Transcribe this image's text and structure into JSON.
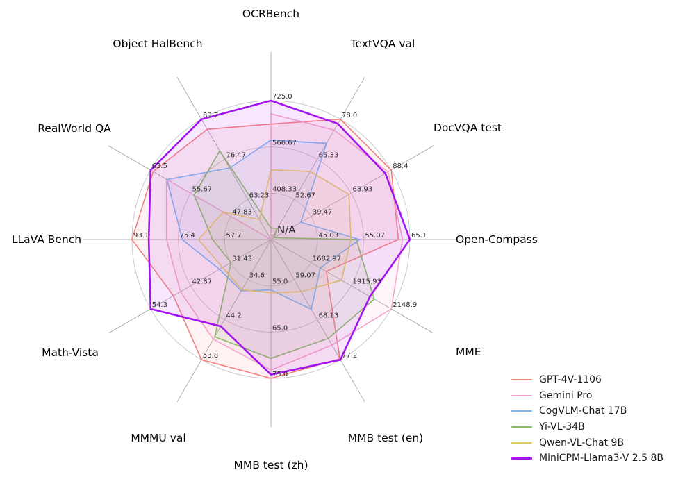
{
  "chart_data": {
    "type": "radar",
    "title": "",
    "center_label": "N/A",
    "grid": true,
    "legend_position": "lower right",
    "grid_color": "#c3c3c3",
    "spoke_color": "#9e9e9e",
    "axes": [
      {
        "label": "OCRBench",
        "max": 725.0,
        "min": 250.0,
        "tick_labels": [
          "725.0",
          "566.67",
          "408.33"
        ]
      },
      {
        "label": "TextVQA val",
        "max": 78.0,
        "min": 40.0,
        "tick_labels": [
          "78.0",
          "65.33",
          "52.67"
        ]
      },
      {
        "label": "DocVQA test",
        "max": 88.4,
        "min": 15.0,
        "tick_labels": [
          "88.4",
          "63.93",
          "39.47"
        ]
      },
      {
        "label": "Open-Compass",
        "max": 65.1,
        "min": 35.0,
        "tick_labels": [
          "65.1",
          "55.07",
          "45.03"
        ]
      },
      {
        "label": "MME",
        "max": 2148.9,
        "min": 1450.0,
        "tick_labels": [
          "2148.9",
          "1915.93",
          "1682.97"
        ]
      },
      {
        "label": "MMB test (en)",
        "max": 77.2,
        "min": 50.0,
        "tick_labels": [
          "77.2",
          "68.13",
          "59.07"
        ]
      },
      {
        "label": "MMB test (zh)",
        "max": 75.0,
        "min": 45.0,
        "tick_labels": [
          "75.0",
          "65.0",
          "55.0"
        ]
      },
      {
        "label": "MMMU val",
        "max": 53.8,
        "min": 25.0,
        "tick_labels": [
          "53.8",
          "44.2",
          "34.6"
        ]
      },
      {
        "label": "Math-Vista",
        "max": 54.3,
        "min": 20.0,
        "tick_labels": [
          "54.3",
          "42.87",
          "31.43"
        ]
      },
      {
        "label": "LLaVA Bench",
        "max": 93.1,
        "min": 40.0,
        "tick_labels": [
          "93.1",
          "75.4",
          "57.7"
        ]
      },
      {
        "label": "RealWorld QA",
        "max": 63.5,
        "min": 40.0,
        "tick_labels": [
          "63.5",
          "55.67",
          "47.83"
        ]
      },
      {
        "label": "Object HalBench",
        "max": 89.7,
        "min": 50.0,
        "tick_labels": [
          "89.7",
          "76.47",
          "63.23"
        ]
      }
    ],
    "series": [
      {
        "name": "GPT-4V-1106",
        "color": "#f5827f",
        "line_width": 1.6,
        "values": [
          645,
          78.0,
          88.4,
          62.6,
          1771.5,
          77.0,
          75.0,
          53.8,
          47.8,
          93.1,
          63.0,
          86.4
        ]
      },
      {
        "name": "Gemini Pro",
        "color": "#f6a4cb",
        "line_width": 1.6,
        "values": [
          680,
          74.6,
          86.5,
          63.5,
          2148.9,
          73.9,
          73.2,
          48.9,
          45.8,
          79.9,
          60.4,
          null
        ]
      },
      {
        "name": "CogVLM-Chat 17B",
        "color": "#7fb5f0",
        "line_width": 1.6,
        "values": [
          590,
          70.4,
          33.3,
          54.2,
          1736.6,
          65.8,
          55.9,
          37.3,
          34.7,
          73.9,
          60.3,
          73.6
        ]
      },
      {
        "name": "Yi-VL-34B",
        "color": "#8bbb66",
        "line_width": 1.6,
        "values": [
          290,
          43.4,
          16.9,
          53.5,
          2050.2,
          72.4,
          70.7,
          48.3,
          31.4,
          62.3,
          55.0,
          79.3
        ]
      },
      {
        "name": "Qwen-VL-Chat 9B",
        "color": "#e5c668",
        "line_width": 1.6,
        "values": [
          488,
          61.5,
          62.6,
          52.3,
          1860.0,
          61.8,
          56.5,
          37.0,
          33.8,
          67.7,
          49.3,
          56.6
        ]
      },
      {
        "name": "MiniCPM-Llama3-V 2.5 8B",
        "color": "#a414ee",
        "line_width": 2.6,
        "values": [
          725,
          76.6,
          84.8,
          65.1,
          2024.6,
          77.2,
          74.2,
          45.8,
          54.3,
          86.7,
          63.5,
          89.7
        ]
      }
    ]
  }
}
